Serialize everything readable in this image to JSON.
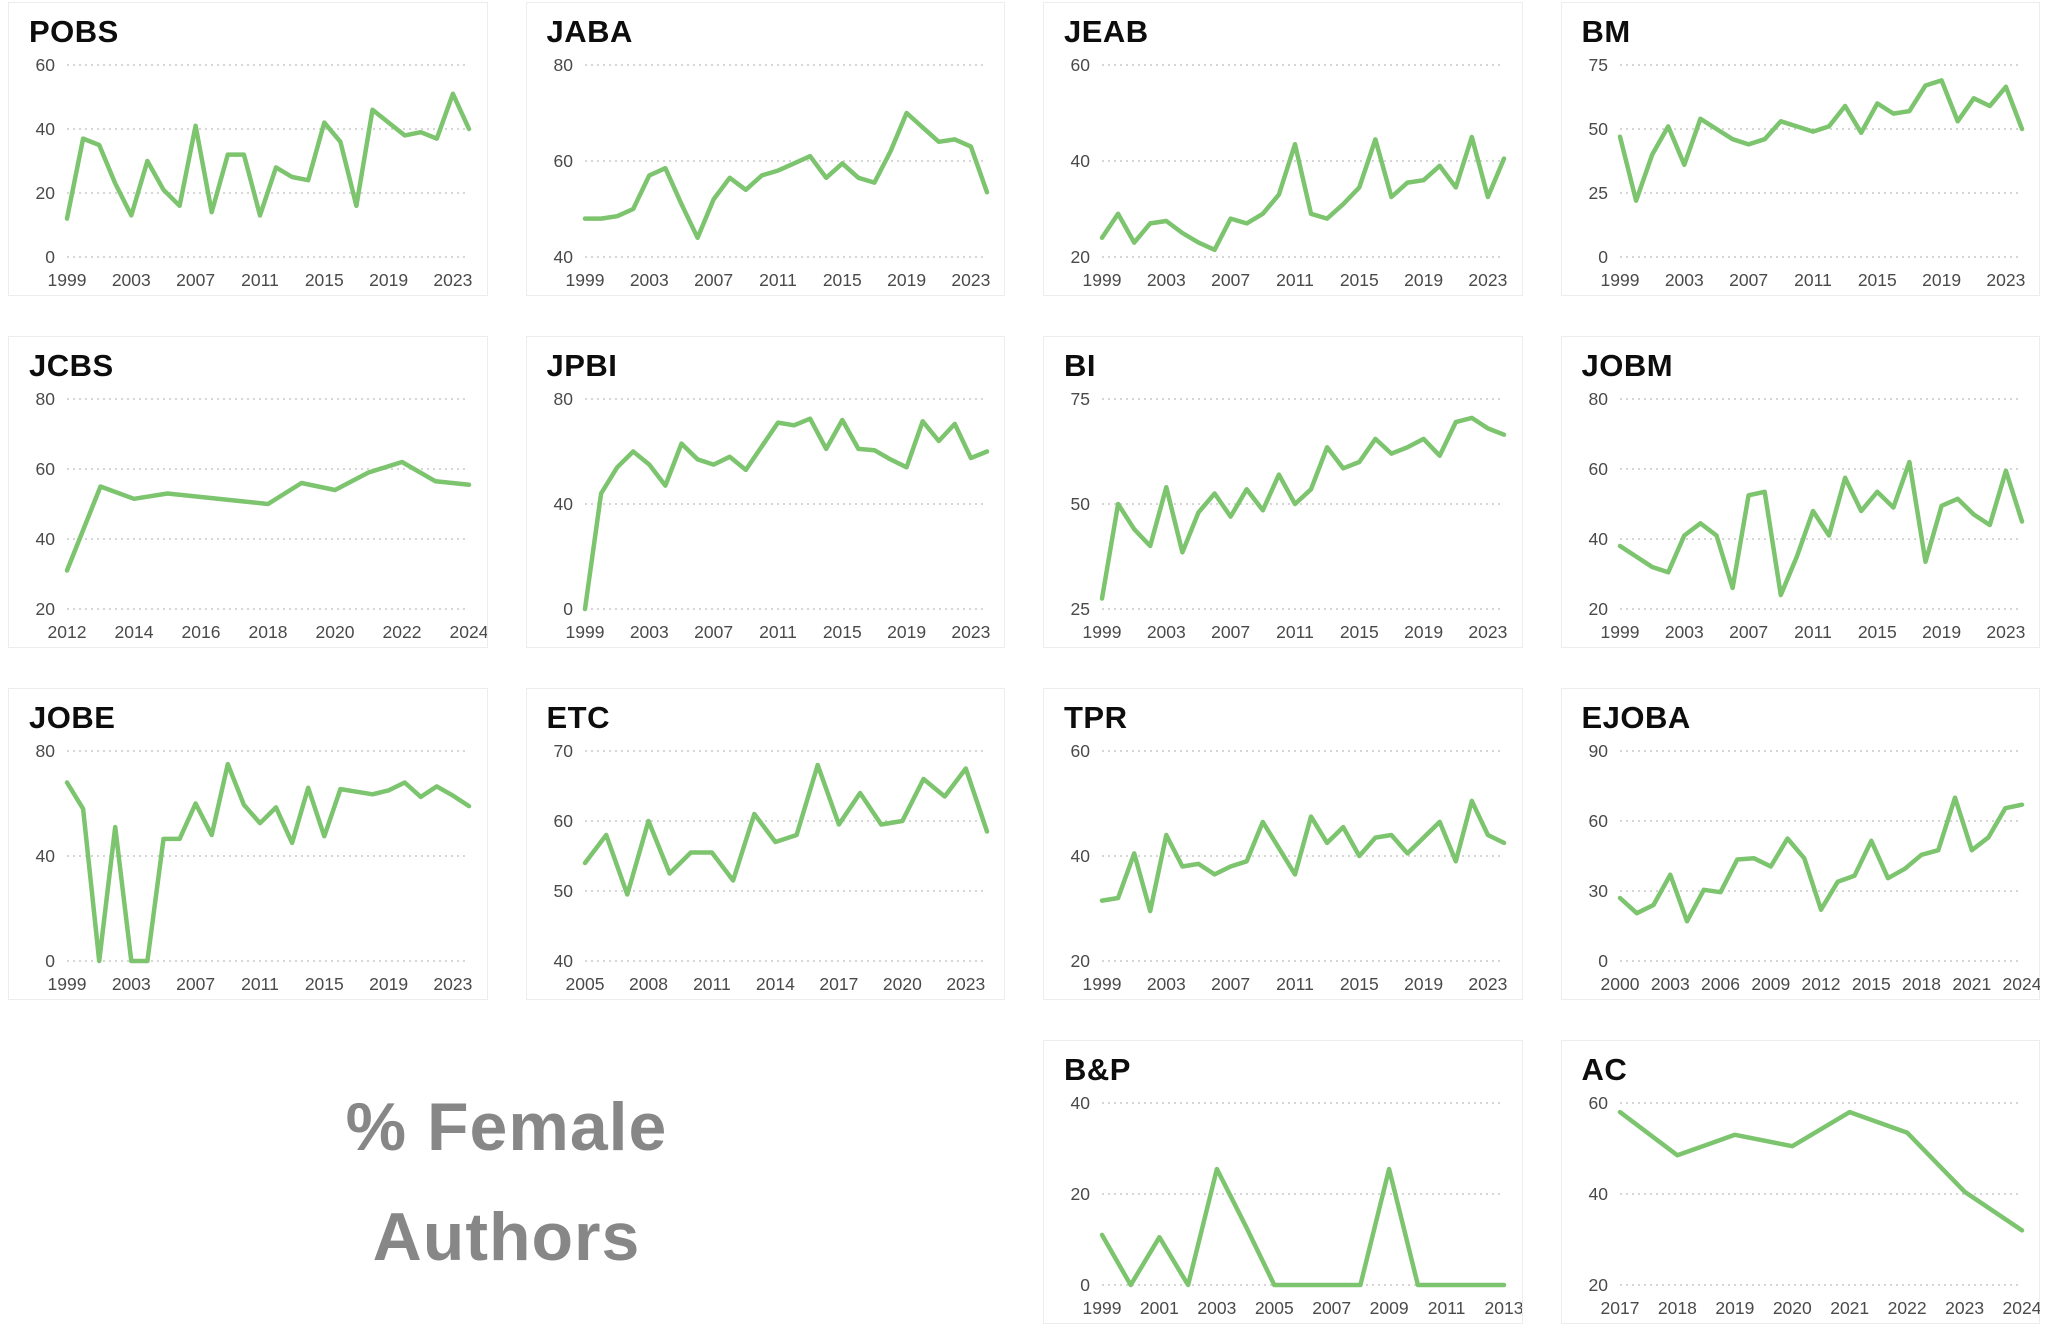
{
  "caption": {
    "line1": "% Female",
    "line2": "Authors"
  },
  "style": {
    "line_color": "#7cc46e",
    "grid_color": "#c9c9c9",
    "tick_color": "#4a4a4a",
    "title_color": "#0d0d0d",
    "caption_color": "#878787",
    "card_border_color": "#ededed"
  },
  "chart_data": [
    {
      "type": "line",
      "title": "POBS",
      "x_start": 1999,
      "x_end": 2024,
      "values": [
        12,
        37,
        35,
        23,
        13,
        30,
        21,
        16,
        41,
        14,
        32,
        32,
        13,
        28,
        25,
        24,
        42,
        36,
        16,
        46,
        42,
        38,
        39,
        37,
        51,
        40
      ],
      "xticks": [
        1999,
        2003,
        2007,
        2011,
        2015,
        2019,
        2023
      ],
      "yticks": [
        0,
        20,
        40,
        60
      ],
      "ylim": [
        0,
        60
      ],
      "grid": "dotted-horizontal",
      "legend": "none"
    },
    {
      "type": "line",
      "title": "JABA",
      "x_start": 1999,
      "x_end": 2024,
      "values": [
        48,
        48,
        48.5,
        50,
        57,
        58.5,
        51,
        44,
        52,
        56.5,
        54,
        57,
        58,
        59.5,
        61,
        56.5,
        59.5,
        56.5,
        55.5,
        62,
        70,
        67,
        64,
        64.5,
        63,
        53.5
      ],
      "xticks": [
        1999,
        2003,
        2007,
        2011,
        2015,
        2019,
        2023
      ],
      "yticks": [
        40,
        60,
        80
      ],
      "ylim": [
        40,
        80
      ],
      "grid": "dotted-horizontal",
      "legend": "none"
    },
    {
      "type": "line",
      "title": "JEAB",
      "x_start": 1999,
      "x_end": 2024,
      "values": [
        24,
        29,
        23,
        27,
        27.5,
        25,
        23,
        21.5,
        28,
        27,
        29,
        33,
        43.5,
        29,
        28,
        31,
        34.5,
        44.5,
        32.5,
        35.5,
        36,
        39,
        34.5,
        45,
        32.5,
        40.5
      ],
      "xticks": [
        1999,
        2003,
        2007,
        2011,
        2015,
        2019,
        2023
      ],
      "yticks": [
        20,
        40,
        60
      ],
      "ylim": [
        20,
        60
      ],
      "grid": "dotted-horizontal",
      "legend": "none"
    },
    {
      "type": "line",
      "title": "BM",
      "x_start": 1999,
      "x_end": 2024,
      "values": [
        47,
        22,
        40,
        51,
        36,
        54,
        50,
        46,
        44,
        46,
        53,
        51,
        49,
        51,
        59,
        48.5,
        60,
        56,
        57,
        67,
        69,
        53,
        62,
        59,
        66.5,
        50
      ],
      "xticks": [
        1999,
        2003,
        2007,
        2011,
        2015,
        2019,
        2023
      ],
      "yticks": [
        0,
        25,
        50,
        75
      ],
      "ylim": [
        0,
        75
      ],
      "grid": "dotted-horizontal",
      "legend": "none"
    },
    {
      "type": "line",
      "title": "JCBS",
      "x_start": 2012,
      "x_end": 2024,
      "values": [
        31,
        55,
        51.5,
        53,
        52,
        51,
        50,
        56,
        54,
        59,
        62,
        56.5,
        55.5
      ],
      "xticks": [
        2012,
        2014,
        2016,
        2018,
        2020,
        2022,
        2024
      ],
      "yticks": [
        20,
        40,
        60,
        80
      ],
      "ylim": [
        20,
        80
      ],
      "grid": "dotted-horizontal",
      "legend": "none"
    },
    {
      "type": "line",
      "title": "JPBI",
      "x_start": 1999,
      "x_end": 2024,
      "values": [
        0,
        44,
        54,
        60,
        55,
        47,
        63,
        57,
        55,
        58,
        53,
        62,
        71,
        70,
        72.5,
        61,
        72,
        61,
        60.5,
        57,
        54,
        71.5,
        64,
        70.5,
        57.5,
        60
      ],
      "xticks": [
        1999,
        2003,
        2007,
        2011,
        2015,
        2019,
        2023
      ],
      "yticks": [
        0,
        40,
        80
      ],
      "ylim": [
        0,
        80
      ],
      "grid": "dotted-horizontal",
      "legend": "none"
    },
    {
      "type": "line",
      "title": "BI",
      "x_start": 1999,
      "x_end": 2024,
      "values": [
        27.5,
        50,
        44,
        40,
        54,
        38.5,
        48,
        52.5,
        47,
        53.5,
        48.5,
        57,
        50,
        53.5,
        63.5,
        58.5,
        60,
        65.5,
        62,
        63.5,
        65.5,
        61.5,
        69.5,
        70.5,
        68,
        66.5
      ],
      "xticks": [
        1999,
        2003,
        2007,
        2011,
        2015,
        2019,
        2023
      ],
      "yticks": [
        25,
        50,
        75
      ],
      "ylim": [
        25,
        75
      ],
      "grid": "dotted-horizontal",
      "legend": "none"
    },
    {
      "type": "line",
      "title": "JOBM",
      "x_start": 1999,
      "x_end": 2024,
      "values": [
        38,
        35,
        32,
        30.5,
        41,
        44.5,
        41,
        26,
        52.5,
        53.5,
        24,
        35,
        48,
        41,
        57.5,
        48,
        53.5,
        49,
        62,
        33.5,
        49.5,
        51.5,
        47,
        44,
        59.5,
        45
      ],
      "xticks": [
        1999,
        2003,
        2007,
        2011,
        2015,
        2019,
        2023
      ],
      "yticks": [
        20,
        40,
        60,
        80
      ],
      "ylim": [
        20,
        80
      ],
      "grid": "dotted-horizontal",
      "legend": "none"
    },
    {
      "type": "line",
      "title": "JOBE",
      "x_start": 1999,
      "x_end": 2024,
      "values": [
        68,
        58,
        0,
        51,
        0,
        0,
        46.5,
        46.5,
        60,
        48,
        75,
        59.5,
        52.5,
        58.5,
        45,
        66,
        47.5,
        65.5,
        64.5,
        63.5,
        65,
        68,
        62.5,
        66.5,
        63,
        59
      ],
      "xticks": [
        1999,
        2003,
        2007,
        2011,
        2015,
        2019,
        2023
      ],
      "yticks": [
        0,
        40,
        80
      ],
      "ylim": [
        0,
        80
      ],
      "grid": "dotted-horizontal",
      "legend": "none"
    },
    {
      "type": "line",
      "title": "ETC",
      "x_start": 2005,
      "x_end": 2024,
      "values": [
        54,
        58,
        49.5,
        60,
        52.5,
        55.5,
        55.5,
        51.5,
        61,
        57,
        58,
        68,
        59.5,
        64,
        59.5,
        60,
        66,
        63.5,
        67.5,
        58.5
      ],
      "xticks": [
        2005,
        2008,
        2011,
        2014,
        2017,
        2020,
        2023
      ],
      "yticks": [
        40,
        50,
        60,
        70
      ],
      "ylim": [
        40,
        70
      ],
      "grid": "dotted-horizontal",
      "legend": "none"
    },
    {
      "type": "line",
      "title": "TPR",
      "x_start": 1999,
      "x_end": 2024,
      "values": [
        31.5,
        32,
        40.5,
        29.5,
        44,
        38,
        38.5,
        36.5,
        38,
        39,
        46.5,
        41.5,
        36.5,
        47.5,
        42.5,
        45.5,
        40,
        43.5,
        44,
        40.5,
        43.5,
        46.5,
        39,
        50.5,
        44,
        42.5
      ],
      "xticks": [
        1999,
        2003,
        2007,
        2011,
        2015,
        2019,
        2023
      ],
      "yticks": [
        20,
        40,
        60
      ],
      "ylim": [
        20,
        60
      ],
      "grid": "dotted-horizontal",
      "legend": "none"
    },
    {
      "type": "line",
      "title": "EJOBA",
      "x_start": 2000,
      "x_end": 2024,
      "values": [
        27,
        20.5,
        24,
        37,
        17,
        30.5,
        29.5,
        43.5,
        44,
        40.5,
        52.5,
        44,
        22,
        34,
        36.5,
        51.5,
        35.5,
        39.5,
        45.5,
        47.5,
        70,
        47.5,
        53,
        65.5,
        67
      ],
      "xticks": [
        2000,
        2003,
        2006,
        2009,
        2012,
        2015,
        2018,
        2021,
        2024
      ],
      "yticks": [
        0,
        30,
        60,
        90
      ],
      "ylim": [
        0,
        90
      ],
      "grid": "dotted-horizontal",
      "legend": "none"
    },
    {
      "type": "line",
      "title": "B&P",
      "x_start": 1999,
      "x_end": 2013,
      "values": [
        11,
        0,
        10.5,
        0,
        25.5,
        13,
        0,
        0,
        0,
        0,
        25.5,
        0,
        0,
        0,
        0
      ],
      "xticks": [
        1999,
        2001,
        2003,
        2005,
        2007,
        2009,
        2011,
        2013
      ],
      "yticks": [
        0,
        20,
        40
      ],
      "ylim": [
        0,
        40
      ],
      "grid": "dotted-horizontal",
      "legend": "none"
    },
    {
      "type": "line",
      "title": "AC",
      "x_start": 2017,
      "x_end": 2024,
      "values": [
        58,
        48.5,
        53,
        50.5,
        58,
        53.5,
        40.5,
        32
      ],
      "xticks": [
        2017,
        2018,
        2019,
        2020,
        2021,
        2022,
        2023,
        2024
      ],
      "yticks": [
        20,
        40,
        60
      ],
      "ylim": [
        20,
        60
      ],
      "grid": "dotted-horizontal",
      "legend": "none"
    }
  ]
}
